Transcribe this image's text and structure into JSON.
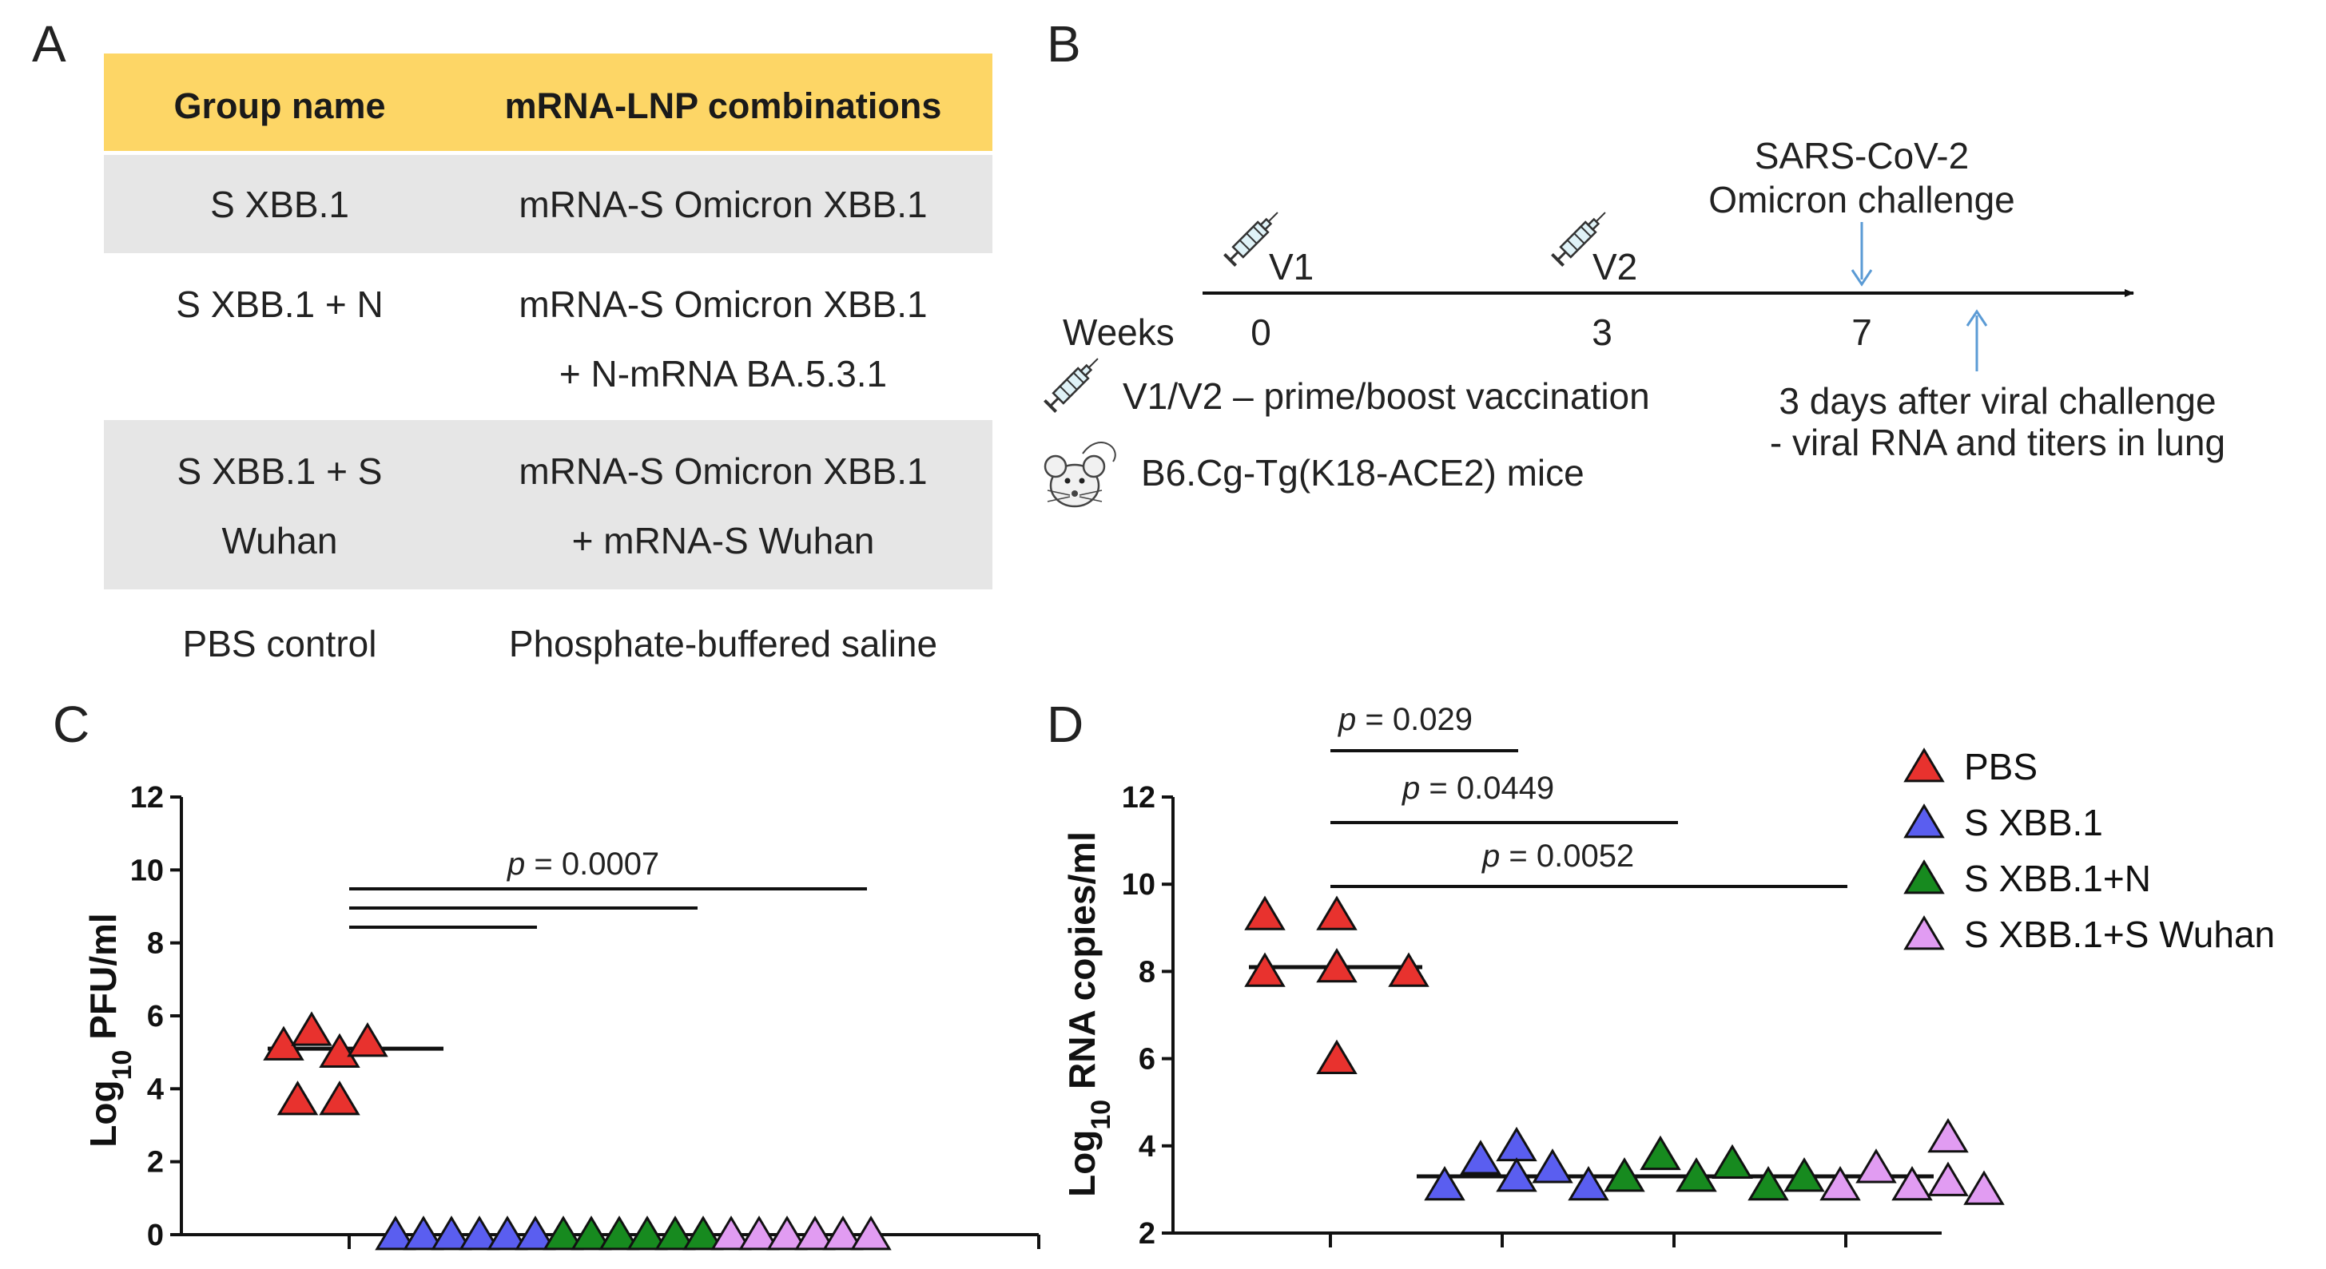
{
  "panel_labels": {
    "a": "A",
    "b": "B",
    "c": "C",
    "d": "D"
  },
  "table": {
    "headers": [
      "Group name",
      "mRNA-LNP combinations"
    ],
    "rows": [
      {
        "group": [
          "S XBB.1"
        ],
        "combo": [
          "mRNA-S Omicron XBB.1"
        ]
      },
      {
        "group": [
          "S XBB.1 + N"
        ],
        "combo": [
          "mRNA-S Omicron XBB.1",
          "+ N-mRNA BA.5.3.1"
        ]
      },
      {
        "group": [
          "S XBB.1 + S",
          "Wuhan"
        ],
        "combo": [
          "mRNA-S Omicron XBB.1",
          "+ mRNA-S Wuhan"
        ]
      },
      {
        "group": [
          "PBS control"
        ],
        "combo": [
          "Phosphate-buffered saline"
        ]
      }
    ],
    "colors": {
      "header_bg": "#fdd666",
      "shaded_row_bg": "#e6e6e6"
    }
  },
  "timeline": {
    "challenge_label": [
      "SARS-CoV-2",
      "Omicron challenge"
    ],
    "v1": "V1",
    "v2": "V2",
    "weeks_label": "Weeks",
    "weeks": [
      "0",
      "3",
      "7"
    ],
    "legend_vaccination": "V1/V2 – prime/boost vaccination",
    "legend_mice": "B6.Cg-Tg(K18-ACE2) mice",
    "after_challenge": [
      "3 days after viral challenge",
      "- viral RNA and titers in lung"
    ],
    "arrow_color": "#5b9bd5",
    "icons": [
      "syringe-icon",
      "mouse-icon"
    ]
  },
  "chart_data": [
    {
      "type": "scatter",
      "panel": "C",
      "ylabel_prefix": "Log",
      "ylabel_sub": "10",
      "ylabel_suffix": " PFU/ml",
      "ylim": [
        0,
        12
      ],
      "yticks": [
        "0",
        "2",
        "4",
        "6",
        "8",
        "10",
        "12"
      ],
      "median_lines": [
        {
          "group": "PBS",
          "value": 5.1
        }
      ],
      "series": [
        {
          "name": "PBS",
          "color": "#e8322e",
          "points": [
            [
              1,
              5.2
            ],
            [
              2,
              5.6
            ],
            [
              3,
              5.0
            ],
            [
              4,
              5.3
            ],
            [
              1.5,
              3.7
            ],
            [
              3,
              3.7
            ]
          ]
        },
        {
          "name": "S XBB.1",
          "color": "#5a5ef0",
          "points": [
            [
              5,
              0
            ],
            [
              6,
              0
            ],
            [
              7,
              0
            ],
            [
              8,
              0
            ],
            [
              9,
              0
            ],
            [
              10,
              0
            ]
          ]
        },
        {
          "name": "S XBB.1+N",
          "color": "#178a1f",
          "points": [
            [
              11,
              0
            ],
            [
              12,
              0
            ],
            [
              13,
              0
            ],
            [
              14,
              0
            ],
            [
              15,
              0
            ],
            [
              16,
              0
            ]
          ]
        },
        {
          "name": "S XBB.1+S Wuhan",
          "color": "#e19cf2",
          "points": [
            [
              17,
              0
            ],
            [
              18,
              0
            ],
            [
              19,
              0
            ],
            [
              20,
              0
            ],
            [
              21,
              0
            ],
            [
              22,
              0
            ]
          ]
        }
      ],
      "significance": [
        {
          "p_label": "p",
          "p_text": " = 0.0007"
        }
      ]
    },
    {
      "type": "scatter",
      "panel": "D",
      "ylabel_prefix": "Log",
      "ylabel_sub": "10",
      "ylabel_suffix": " RNA copies/ml",
      "ylim": [
        2,
        12
      ],
      "yticks": [
        "2",
        "4",
        "6",
        "8",
        "10",
        "12"
      ],
      "median_lines": [
        {
          "group": "PBS",
          "value": 8.1
        },
        {
          "group": "vaccinated",
          "value": 3.3
        }
      ],
      "series": [
        {
          "name": "PBS",
          "color": "#e8322e",
          "points": [
            [
              1,
              9.3
            ],
            [
              3,
              9.3
            ],
            [
              1,
              8.0
            ],
            [
              3,
              8.1
            ],
            [
              5,
              8.0
            ],
            [
              3,
              6.0
            ]
          ]
        },
        {
          "name": "S XBB.1",
          "color": "#5a5ef0",
          "points": [
            [
              6,
              3.1
            ],
            [
              7,
              3.7
            ],
            [
              8,
              4.0
            ],
            [
              8,
              3.3
            ],
            [
              9,
              3.5
            ],
            [
              10,
              3.1
            ]
          ]
        },
        {
          "name": "S XBB.1+N",
          "color": "#178a1f",
          "points": [
            [
              11,
              3.3
            ],
            [
              12,
              3.8
            ],
            [
              13,
              3.3
            ],
            [
              14,
              3.6
            ],
            [
              15,
              3.1
            ],
            [
              16,
              3.3
            ]
          ]
        },
        {
          "name": "S XBB.1+S Wuhan",
          "color": "#e19cf2",
          "points": [
            [
              17,
              3.1
            ],
            [
              18,
              3.5
            ],
            [
              19,
              3.1
            ],
            [
              20,
              4.2
            ],
            [
              20,
              3.2
            ],
            [
              21,
              3.0
            ]
          ]
        }
      ],
      "significance": [
        {
          "p_label": "p",
          "p_text": " = 0.029"
        },
        {
          "p_label": "p",
          "p_text": " = 0.0449"
        },
        {
          "p_label": "p",
          "p_text": " = 0.0052"
        }
      ],
      "legend": [
        "PBS",
        "S XBB.1",
        "S XBB.1+N",
        "S XBB.1+S Wuhan"
      ]
    }
  ]
}
